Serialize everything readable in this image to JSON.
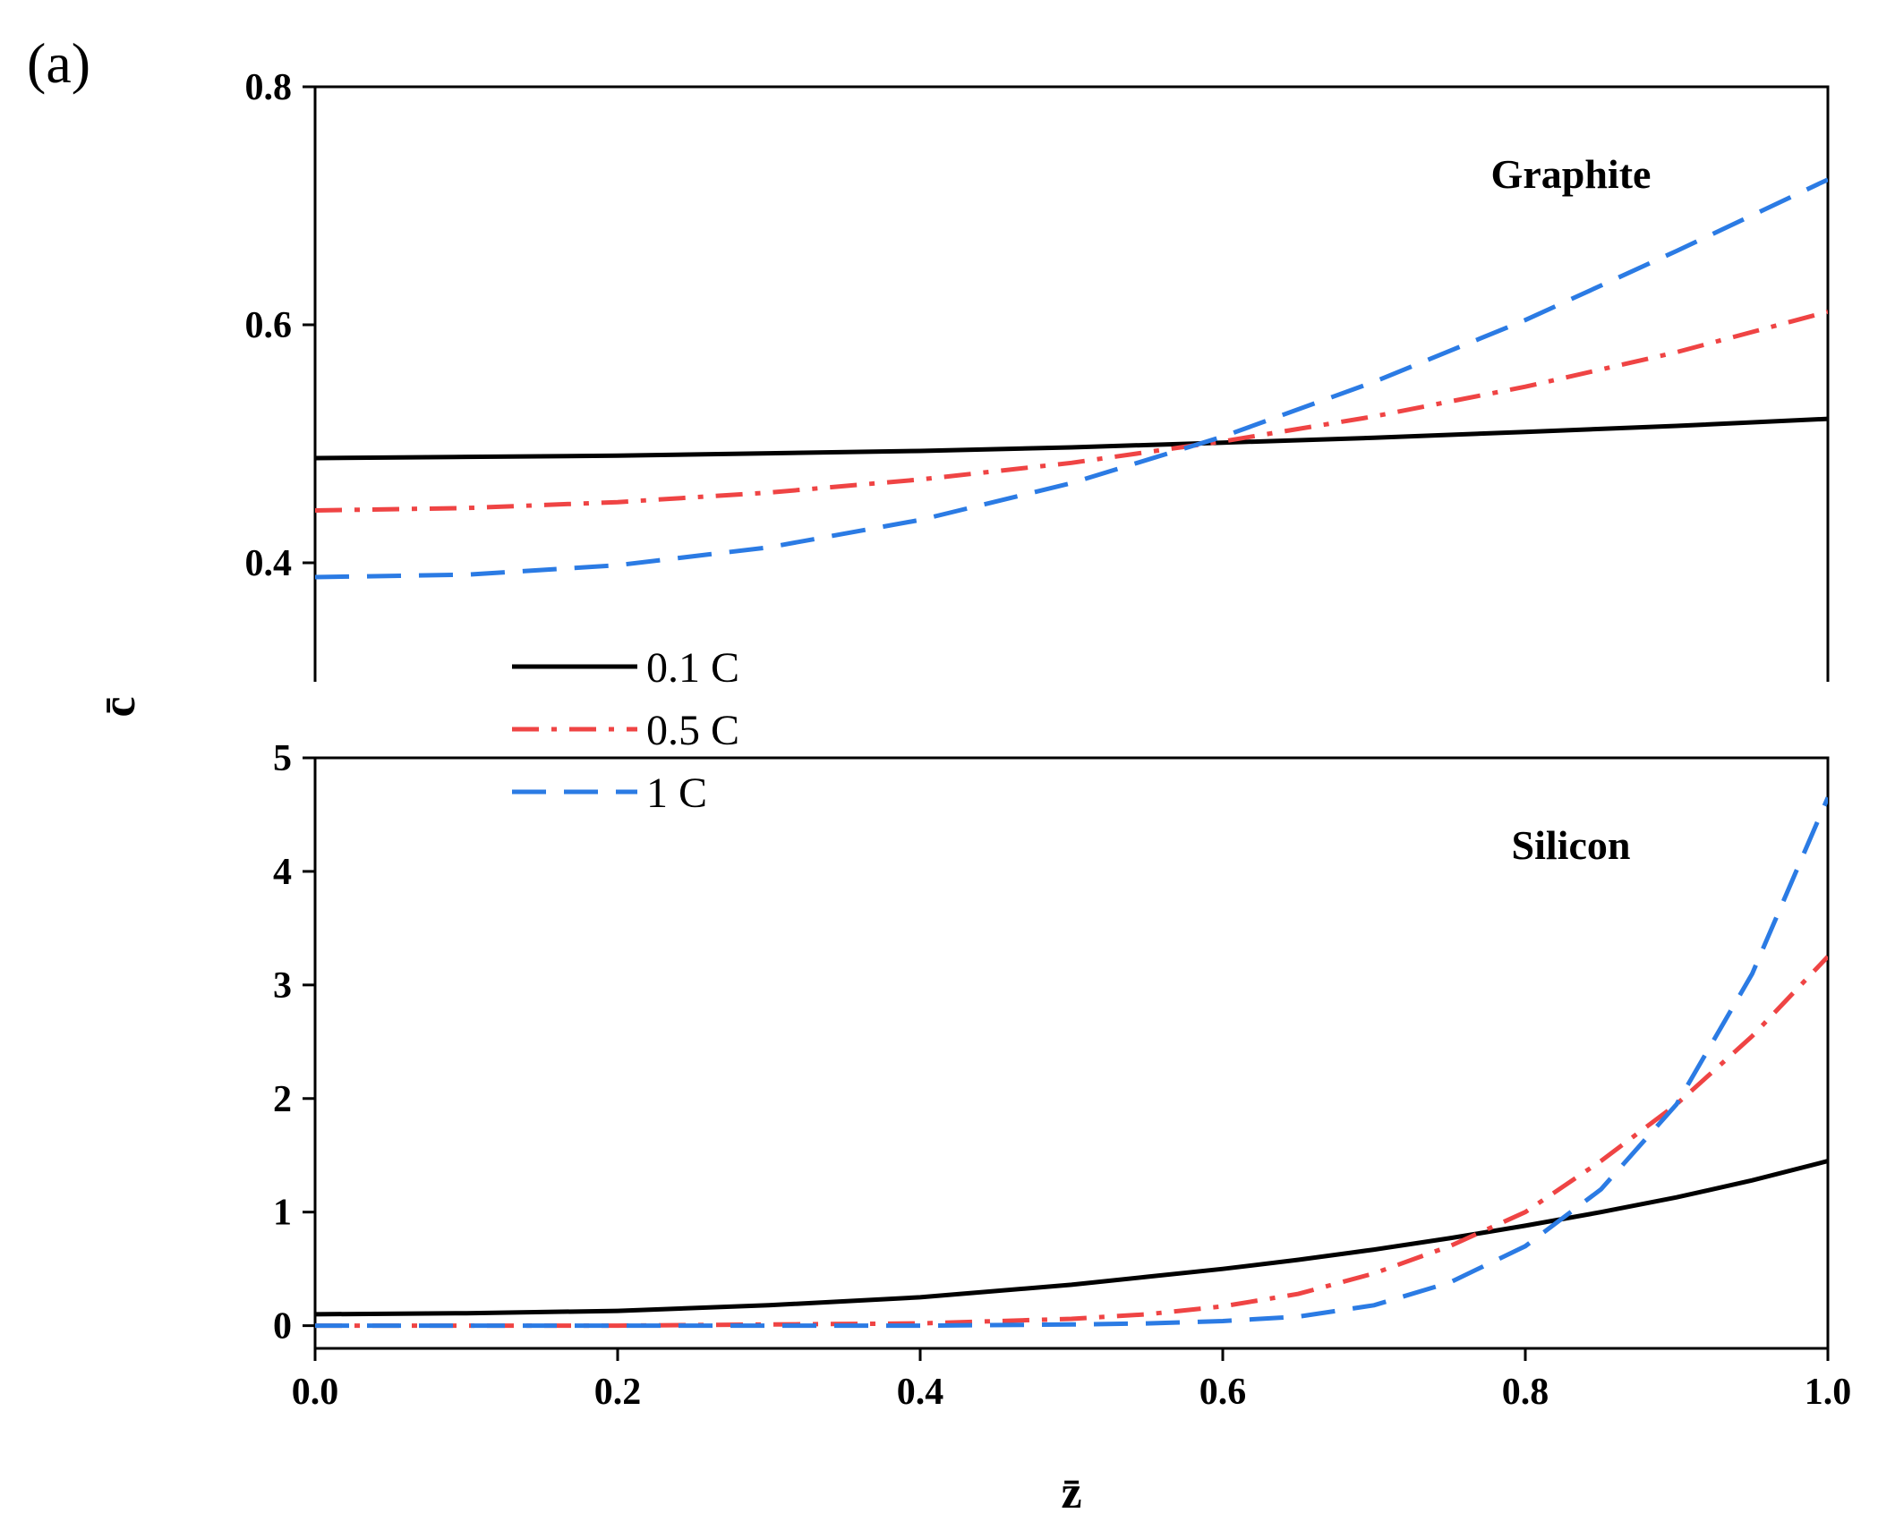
{
  "panel_letter": "(a)",
  "colors": {
    "c01": "#000000",
    "c05": "#ef4444",
    "c1": "#2b7be4"
  },
  "legend": [
    {
      "label": "0.1 C",
      "key": "c01",
      "style": "solid"
    },
    {
      "label": "0.5 C",
      "key": "c05",
      "style": "dashdot"
    },
    {
      "label": "1 C",
      "key": "c1",
      "style": "dash"
    }
  ],
  "ylabel": "c̄",
  "xlabel": "z̄",
  "chart_data": [
    {
      "type": "line",
      "title": "Graphite",
      "xlim": [
        0.0,
        1.0
      ],
      "ylim": [
        0.3,
        0.8
      ],
      "xticks": [
        0.0,
        0.2,
        0.4,
        0.6,
        0.8,
        1.0
      ],
      "yticks": [
        0.4,
        0.6,
        0.8
      ],
      "ytick_labels": [
        "0.4",
        "0.6",
        "0.8"
      ],
      "x": [
        0.0,
        0.1,
        0.2,
        0.3,
        0.4,
        0.5,
        0.6,
        0.7,
        0.8,
        0.9,
        1.0
      ],
      "series": [
        {
          "name": "0.1 C",
          "key": "c01",
          "values": [
            0.488,
            0.489,
            0.49,
            0.492,
            0.494,
            0.497,
            0.501,
            0.505,
            0.51,
            0.515,
            0.521
          ]
        },
        {
          "name": "0.5 C",
          "key": "c05",
          "values": [
            0.444,
            0.446,
            0.451,
            0.459,
            0.47,
            0.484,
            0.502,
            0.523,
            0.548,
            0.577,
            0.611
          ]
        },
        {
          "name": "1 C",
          "key": "c1",
          "values": [
            0.388,
            0.39,
            0.398,
            0.413,
            0.436,
            0.467,
            0.506,
            0.552,
            0.604,
            0.662,
            0.722
          ]
        }
      ]
    },
    {
      "type": "line",
      "title": "Silicon",
      "xlim": [
        0.0,
        1.0
      ],
      "ylim": [
        -0.2,
        5.0
      ],
      "xticks": [
        0.0,
        0.2,
        0.4,
        0.6,
        0.8,
        1.0
      ],
      "xtick_labels": [
        "0.0",
        "0.2",
        "0.4",
        "0.6",
        "0.8",
        "1.0"
      ],
      "yticks": [
        0,
        1,
        2,
        3,
        4,
        5
      ],
      "ytick_labels": [
        "0",
        "1",
        "2",
        "3",
        "4",
        "5"
      ],
      "x": [
        0.0,
        0.1,
        0.2,
        0.3,
        0.4,
        0.5,
        0.55,
        0.6,
        0.65,
        0.7,
        0.75,
        0.8,
        0.85,
        0.9,
        0.95,
        1.0
      ],
      "series": [
        {
          "name": "0.1 C",
          "key": "c01",
          "values": [
            0.1,
            0.11,
            0.13,
            0.18,
            0.25,
            0.36,
            0.43,
            0.5,
            0.58,
            0.67,
            0.77,
            0.88,
            1.0,
            1.13,
            1.28,
            1.45
          ]
        },
        {
          "name": "0.5 C",
          "key": "c05",
          "values": [
            0.0,
            0.0,
            0.0,
            0.01,
            0.02,
            0.06,
            0.1,
            0.17,
            0.28,
            0.46,
            0.7,
            1.0,
            1.45,
            1.95,
            2.55,
            3.25
          ]
        },
        {
          "name": "1 C",
          "key": "c1",
          "values": [
            0.0,
            0.0,
            0.0,
            0.0,
            0.0,
            0.01,
            0.02,
            0.04,
            0.08,
            0.18,
            0.38,
            0.7,
            1.2,
            1.95,
            3.1,
            4.65
          ]
        }
      ]
    }
  ]
}
